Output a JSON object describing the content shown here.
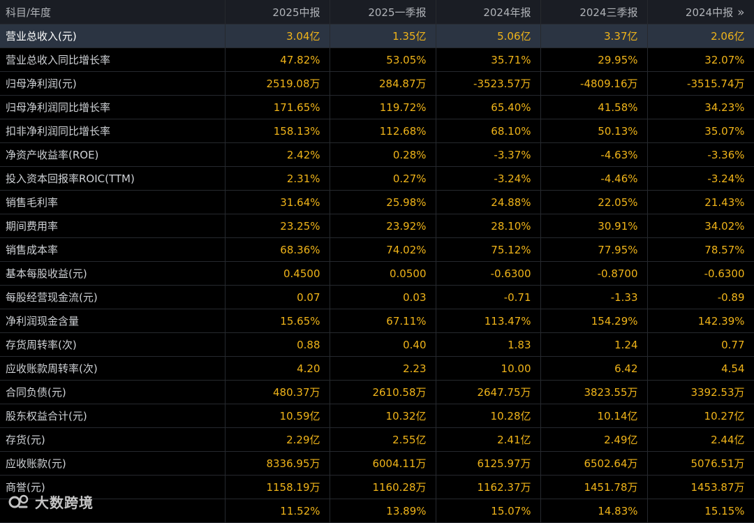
{
  "table": {
    "header": {
      "label": "科目/年度",
      "periods": [
        "2025中报",
        "2025一季报",
        "2024年报",
        "2024三季报",
        "2024中报"
      ],
      "more_icon": "»"
    },
    "rows": [
      {
        "label": "营业总收入(元)",
        "values": [
          "3.04亿",
          "1.35亿",
          "5.06亿",
          "3.37亿",
          "2.06亿"
        ]
      },
      {
        "label": "营业总收入同比增长率",
        "values": [
          "47.82%",
          "53.05%",
          "35.71%",
          "29.95%",
          "32.07%"
        ]
      },
      {
        "label": "归母净利润(元)",
        "values": [
          "2519.08万",
          "284.87万",
          "-3523.57万",
          "-4809.16万",
          "-3515.74万"
        ]
      },
      {
        "label": "归母净利润同比增长率",
        "values": [
          "171.65%",
          "119.72%",
          "65.40%",
          "41.58%",
          "34.23%"
        ]
      },
      {
        "label": "扣非净利润同比增长率",
        "values": [
          "158.13%",
          "112.68%",
          "68.10%",
          "50.13%",
          "35.07%"
        ]
      },
      {
        "label": "净资产收益率(ROE)",
        "values": [
          "2.42%",
          "0.28%",
          "-3.37%",
          "-4.63%",
          "-3.36%"
        ]
      },
      {
        "label": "投入资本回报率ROIC(TTM)",
        "values": [
          "2.31%",
          "0.27%",
          "-3.24%",
          "-4.46%",
          "-3.24%"
        ]
      },
      {
        "label": "销售毛利率",
        "values": [
          "31.64%",
          "25.98%",
          "24.88%",
          "22.05%",
          "21.43%"
        ]
      },
      {
        "label": "期间费用率",
        "values": [
          "23.25%",
          "23.92%",
          "28.10%",
          "30.91%",
          "34.02%"
        ]
      },
      {
        "label": "销售成本率",
        "values": [
          "68.36%",
          "74.02%",
          "75.12%",
          "77.95%",
          "78.57%"
        ]
      },
      {
        "label": "基本每股收益(元)",
        "values": [
          "0.4500",
          "0.0500",
          "-0.6300",
          "-0.8700",
          "-0.6300"
        ]
      },
      {
        "label": "每股经营现金流(元)",
        "values": [
          "0.07",
          "0.03",
          "-0.71",
          "-1.33",
          "-0.89"
        ]
      },
      {
        "label": "净利润现金含量",
        "values": [
          "15.65%",
          "67.11%",
          "113.47%",
          "154.29%",
          "142.39%"
        ]
      },
      {
        "label": "存货周转率(次)",
        "values": [
          "0.88",
          "0.40",
          "1.83",
          "1.24",
          "0.77"
        ]
      },
      {
        "label": "应收账款周转率(次)",
        "values": [
          "4.20",
          "2.23",
          "10.00",
          "6.42",
          "4.54"
        ]
      },
      {
        "label": "合同负债(元)",
        "values": [
          "480.37万",
          "2610.58万",
          "2647.75万",
          "3823.55万",
          "3392.53万"
        ]
      },
      {
        "label": "股东权益合计(元)",
        "values": [
          "10.59亿",
          "10.32亿",
          "10.28亿",
          "10.14亿",
          "10.27亿"
        ]
      },
      {
        "label": "存货(元)",
        "values": [
          "2.29亿",
          "2.55亿",
          "2.41亿",
          "2.49亿",
          "2.44亿"
        ]
      },
      {
        "label": "应收账款(元)",
        "values": [
          "8336.95万",
          "6004.11万",
          "6125.97万",
          "6502.64万",
          "5076.51万"
        ]
      },
      {
        "label": "商誉(元)",
        "values": [
          "1158.19万",
          "1160.28万",
          "1162.37万",
          "1451.78万",
          "1453.87万"
        ]
      },
      {
        "label": "",
        "values": [
          "11.52%",
          "13.89%",
          "15.07%",
          "14.83%",
          "15.15%"
        ]
      }
    ],
    "selected_row": 0
  },
  "watermark": {
    "text": "大数跨境",
    "logo_icon": "dashuju-logo-icon"
  },
  "colors": {
    "value_text": "#f0b419",
    "label_text": "#cfd2d6",
    "header_bg": "#1a1d24",
    "selected_bg": "#2b3442",
    "background": "#000000"
  }
}
